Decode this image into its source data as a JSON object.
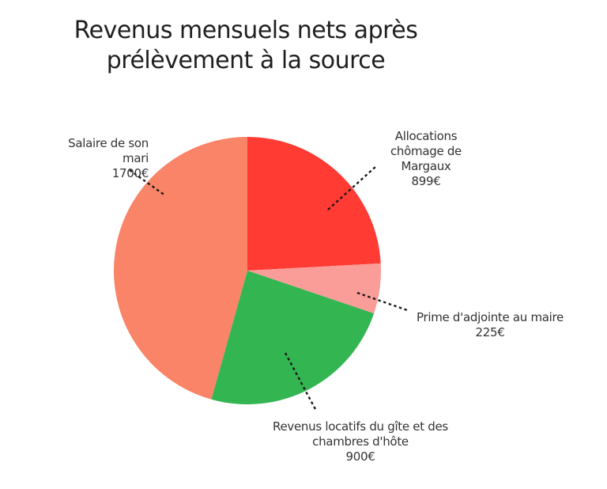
{
  "chart_data": {
    "type": "pie",
    "title": [
      "Revenus mensuels nets après",
      "prélèvement à la source"
    ],
    "slices": [
      {
        "name": "allocations",
        "label_lines": [
          "Allocations",
          "chômage de",
          "Margaux"
        ],
        "value_label": "899€",
        "value": 899,
        "color": "#ff3b33"
      },
      {
        "name": "prime",
        "label_lines": [
          "Prime d'adjointe au maire"
        ],
        "value_label": "225€",
        "value": 225,
        "color": "#fa9c98"
      },
      {
        "name": "revenus-locatifs",
        "label_lines": [
          "Revenus locatifs du gîte et des",
          "chambres d'hôte"
        ],
        "value_label": "900€",
        "value": 900,
        "color": "#33b552"
      },
      {
        "name": "salaire",
        "label_lines": [
          "Salaire de son",
          "mari"
        ],
        "value_label": "1700€",
        "value": 1700,
        "color": "#f98467"
      }
    ],
    "start_angle": "12 o'clock",
    "direction": "clockwise",
    "label_style": "outside with dashed leader lines"
  }
}
